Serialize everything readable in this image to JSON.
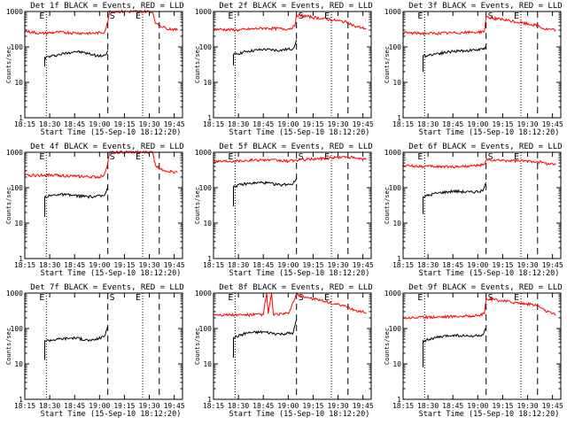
{
  "figure": {
    "start_time_label": "Start Time (15-Sep-10 18:12:20)",
    "ylabel": "Counts/sec",
    "x_tick_labels": [
      "18:15",
      "18:30",
      "18:45",
      "19:00",
      "19:15",
      "19:30",
      "19:45"
    ],
    "y_tick_labels": [
      "1",
      "10",
      "100",
      "1000"
    ],
    "marker_labels": [
      "S",
      "E"
    ],
    "colors": {
      "events": "#000000",
      "lld": "#ff0000",
      "axes": "#000000"
    }
  },
  "chart_data": [
    {
      "type": "line",
      "title": "Det 1f BLACK = Events, RED = LLD",
      "xlabel": "Start Time (15-Sep-10 18:12:20)",
      "ylabel": "Counts/sec",
      "xlim": [
        "18:15",
        "19:50"
      ],
      "ylim": [
        1,
        1000
      ],
      "yscale": "log",
      "dotted_lines": [
        "18:28",
        "19:26"
      ],
      "dashed_lines": [
        "19:05",
        "19:36"
      ],
      "series": [
        {
          "name": "BLACK = Events",
          "color": "#000000",
          "x": [
            "18:27",
            "18:27",
            "18:35",
            "18:45",
            "18:50",
            "19:00",
            "19:04",
            "19:05"
          ],
          "y": [
            28,
            50,
            60,
            75,
            70,
            55,
            60,
            80
          ]
        },
        {
          "name": "RED = LLD",
          "color": "#ff0000",
          "x": [
            "18:15",
            "18:25",
            "18:35",
            "18:45",
            "18:55",
            "19:03",
            "19:05",
            "19:06",
            "19:32",
            "19:34",
            "19:40",
            "19:47"
          ],
          "y": [
            280,
            240,
            260,
            250,
            240,
            260,
            500,
            1000,
            1000,
            450,
            340,
            300
          ]
        }
      ]
    },
    {
      "type": "line",
      "title": "Det 2f BLACK = Events, RED = LLD",
      "xlabel": "Start Time (15-Sep-10 18:12:20)",
      "ylabel": "Counts/sec",
      "xlim": [
        "18:15",
        "19:50"
      ],
      "ylim": [
        1,
        1000
      ],
      "yscale": "log",
      "dotted_lines": [
        "18:28",
        "19:26"
      ],
      "dashed_lines": [
        "19:05",
        "19:36"
      ],
      "series": [
        {
          "name": "BLACK = Events",
          "color": "#000000",
          "x": [
            "18:27",
            "18:27",
            "18:35",
            "18:45",
            "18:55",
            "19:03",
            "19:05"
          ],
          "y": [
            30,
            60,
            75,
            85,
            80,
            90,
            160
          ]
        },
        {
          "name": "RED = LLD",
          "color": "#ff0000",
          "x": [
            "18:15",
            "18:30",
            "18:45",
            "19:00",
            "19:04",
            "19:05",
            "19:36",
            "19:40",
            "19:47"
          ],
          "y": [
            320,
            300,
            340,
            320,
            380,
            800,
            500,
            380,
            330
          ]
        }
      ]
    },
    {
      "type": "line",
      "title": "Det 3f BLACK = Events, RED = LLD",
      "xlabel": "Start Time (15-Sep-10 18:12:20)",
      "ylabel": "Counts/sec",
      "xlim": [
        "18:15",
        "19:50"
      ],
      "ylim": [
        1,
        1000
      ],
      "yscale": "log",
      "dotted_lines": [
        "18:28",
        "19:26"
      ],
      "dashed_lines": [
        "19:05",
        "19:36"
      ],
      "series": [
        {
          "name": "BLACK = Events",
          "color": "#000000",
          "x": [
            "18:27",
            "18:27",
            "18:35",
            "18:45",
            "18:55",
            "19:03",
            "19:05"
          ],
          "y": [
            20,
            55,
            65,
            75,
            80,
            85,
            100
          ]
        },
        {
          "name": "RED = LLD",
          "color": "#ff0000",
          "x": [
            "18:15",
            "18:30",
            "18:45",
            "19:00",
            "19:04",
            "19:05",
            "19:36",
            "19:40",
            "19:47"
          ],
          "y": [
            250,
            240,
            250,
            260,
            280,
            700,
            400,
            320,
            300
          ]
        }
      ]
    },
    {
      "type": "line",
      "title": "Det 4f BLACK = Events, RED = LLD",
      "xlabel": "Start Time (15-Sep-10 18:12:20)",
      "ylabel": "Counts/sec",
      "xlim": [
        "18:15",
        "19:50"
      ],
      "ylim": [
        1,
        1000
      ],
      "yscale": "log",
      "dotted_lines": [
        "18:28",
        "19:26"
      ],
      "dashed_lines": [
        "19:05",
        "19:36"
      ],
      "series": [
        {
          "name": "BLACK = Events",
          "color": "#000000",
          "x": [
            "18:27",
            "18:27",
            "18:35",
            "18:45",
            "18:55",
            "19:03",
            "19:05"
          ],
          "y": [
            15,
            55,
            65,
            60,
            55,
            60,
            110
          ]
        },
        {
          "name": "RED = LLD",
          "color": "#ff0000",
          "x": [
            "18:15",
            "18:30",
            "18:45",
            "19:00",
            "19:03",
            "19:05",
            "19:06",
            "19:32",
            "19:34",
            "19:40",
            "19:47"
          ],
          "y": [
            220,
            230,
            210,
            200,
            240,
            500,
            1000,
            1000,
            400,
            300,
            270
          ]
        }
      ]
    },
    {
      "type": "line",
      "title": "Det 5f BLACK = Events, RED = LLD",
      "xlabel": "Start Time (15-Sep-10 18:12:20)",
      "ylabel": "Counts/sec",
      "xlim": [
        "18:15",
        "19:50"
      ],
      "ylim": [
        1,
        1000
      ],
      "yscale": "log",
      "dotted_lines": [
        "18:28",
        "19:26"
      ],
      "dashed_lines": [
        "19:05",
        "19:36"
      ],
      "series": [
        {
          "name": "BLACK = Events",
          "color": "#000000",
          "x": [
            "18:27",
            "18:27",
            "18:35",
            "18:45",
            "18:55",
            "19:03",
            "19:05"
          ],
          "y": [
            30,
            110,
            130,
            140,
            120,
            130,
            180
          ]
        },
        {
          "name": "RED = LLD",
          "color": "#ff0000",
          "x": [
            "18:15",
            "18:30",
            "18:45",
            "19:00",
            "19:05",
            "19:36",
            "19:40",
            "19:47"
          ],
          "y": [
            560,
            580,
            620,
            560,
            600,
            750,
            680,
            620
          ]
        }
      ]
    },
    {
      "type": "line",
      "title": "Det 6f BLACK = Events, RED = LLD",
      "xlabel": "Start Time (15-Sep-10 18:12:20)",
      "ylabel": "Counts/sec",
      "xlim": [
        "18:15",
        "19:50"
      ],
      "ylim": [
        1,
        1000
      ],
      "yscale": "log",
      "dotted_lines": [
        "18:28",
        "19:26"
      ],
      "dashed_lines": [
        "19:05",
        "19:36"
      ],
      "series": [
        {
          "name": "BLACK = Events",
          "color": "#000000",
          "x": [
            "18:27",
            "18:27",
            "18:35",
            "18:45",
            "18:55",
            "19:03",
            "19:05"
          ],
          "y": [
            18,
            55,
            70,
            80,
            75,
            80,
            140
          ]
        },
        {
          "name": "RED = LLD",
          "color": "#ff0000",
          "x": [
            "18:15",
            "18:30",
            "18:45",
            "19:00",
            "19:04",
            "19:05",
            "19:36",
            "19:40",
            "19:47"
          ],
          "y": [
            420,
            400,
            390,
            420,
            450,
            600,
            550,
            500,
            450
          ]
        }
      ]
    },
    {
      "type": "line",
      "title": "Det 7f BLACK = Events, RED = LLD",
      "xlabel": "Start Time (15-Sep-10 18:12:20)",
      "ylabel": "Counts/sec",
      "xlim": [
        "18:15",
        "19:50"
      ],
      "ylim": [
        1,
        1000
      ],
      "yscale": "log",
      "dotted_lines": [
        "18:28",
        "19:26"
      ],
      "dashed_lines": [
        "19:05",
        "19:36"
      ],
      "series": [
        {
          "name": "BLACK = Events",
          "color": "#000000",
          "x": [
            "18:27",
            "18:27",
            "18:35",
            "18:45",
            "18:55",
            "19:03",
            "19:05"
          ],
          "y": [
            13,
            45,
            50,
            55,
            45,
            60,
            120
          ]
        }
      ]
    },
    {
      "type": "line",
      "title": "Det 8f BLACK = Events, RED = LLD",
      "xlabel": "Start Time (15-Sep-10 18:12:20)",
      "ylabel": "Counts/sec",
      "xlim": [
        "18:15",
        "19:50"
      ],
      "ylim": [
        1,
        1000
      ],
      "yscale": "log",
      "dotted_lines": [
        "18:28",
        "19:26"
      ],
      "dashed_lines": [
        "19:05",
        "19:36"
      ],
      "series": [
        {
          "name": "BLACK = Events",
          "color": "#000000",
          "x": [
            "18:27",
            "18:27",
            "18:35",
            "18:45",
            "18:55",
            "19:03",
            "19:05"
          ],
          "y": [
            15,
            55,
            75,
            80,
            70,
            75,
            180
          ]
        },
        {
          "name": "RED = LLD",
          "color": "#ff0000",
          "x": [
            "18:15",
            "18:30",
            "18:45",
            "18:47",
            "18:48",
            "18:50",
            "18:51",
            "19:00",
            "19:05",
            "19:36",
            "19:40",
            "19:47"
          ],
          "y": [
            250,
            240,
            250,
            1000,
            260,
            1000,
            250,
            260,
            900,
            400,
            330,
            280
          ]
        }
      ]
    },
    {
      "type": "line",
      "title": "Det 9f BLACK = Events, RED = LLD",
      "xlabel": "Start Time (15-Sep-10 18:12:20)",
      "ylabel": "Counts/sec",
      "xlim": [
        "18:15",
        "19:50"
      ],
      "ylim": [
        1,
        1000
      ],
      "yscale": "log",
      "dotted_lines": [
        "18:28",
        "19:26"
      ],
      "dashed_lines": [
        "19:05",
        "19:36"
      ],
      "series": [
        {
          "name": "BLACK = Events",
          "color": "#000000",
          "x": [
            "18:27",
            "18:27",
            "18:35",
            "18:45",
            "18:55",
            "19:03",
            "19:05"
          ],
          "y": [
            8,
            45,
            55,
            65,
            60,
            65,
            100
          ]
        },
        {
          "name": "RED = LLD",
          "color": "#ff0000",
          "x": [
            "18:15",
            "18:30",
            "18:45",
            "19:00",
            "19:04",
            "19:05",
            "19:36",
            "19:40",
            "19:47"
          ],
          "y": [
            200,
            210,
            220,
            230,
            260,
            700,
            450,
            330,
            240
          ]
        }
      ]
    }
  ]
}
